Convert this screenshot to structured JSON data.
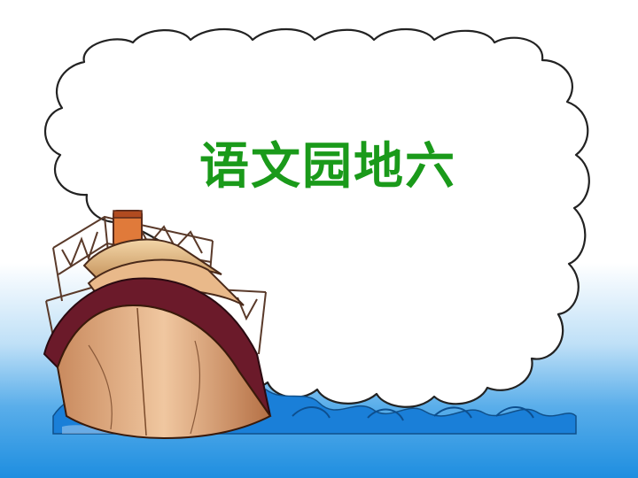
{
  "slide": {
    "title": "语文园地六",
    "title_color": "#1a9a1a"
  },
  "illustration": {
    "icons": [
      "cloud-shape",
      "ship-icon",
      "sea-waves"
    ],
    "colors": {
      "sky_top": "#ffffff",
      "sky_bottom": "#1e8ee0",
      "wave": "#1a7fd8",
      "hull_dark": "#6b1a2a",
      "hull_light": "#d9a37a",
      "funnel": "#e07a3a",
      "cloud_outline": "#222222"
    }
  }
}
